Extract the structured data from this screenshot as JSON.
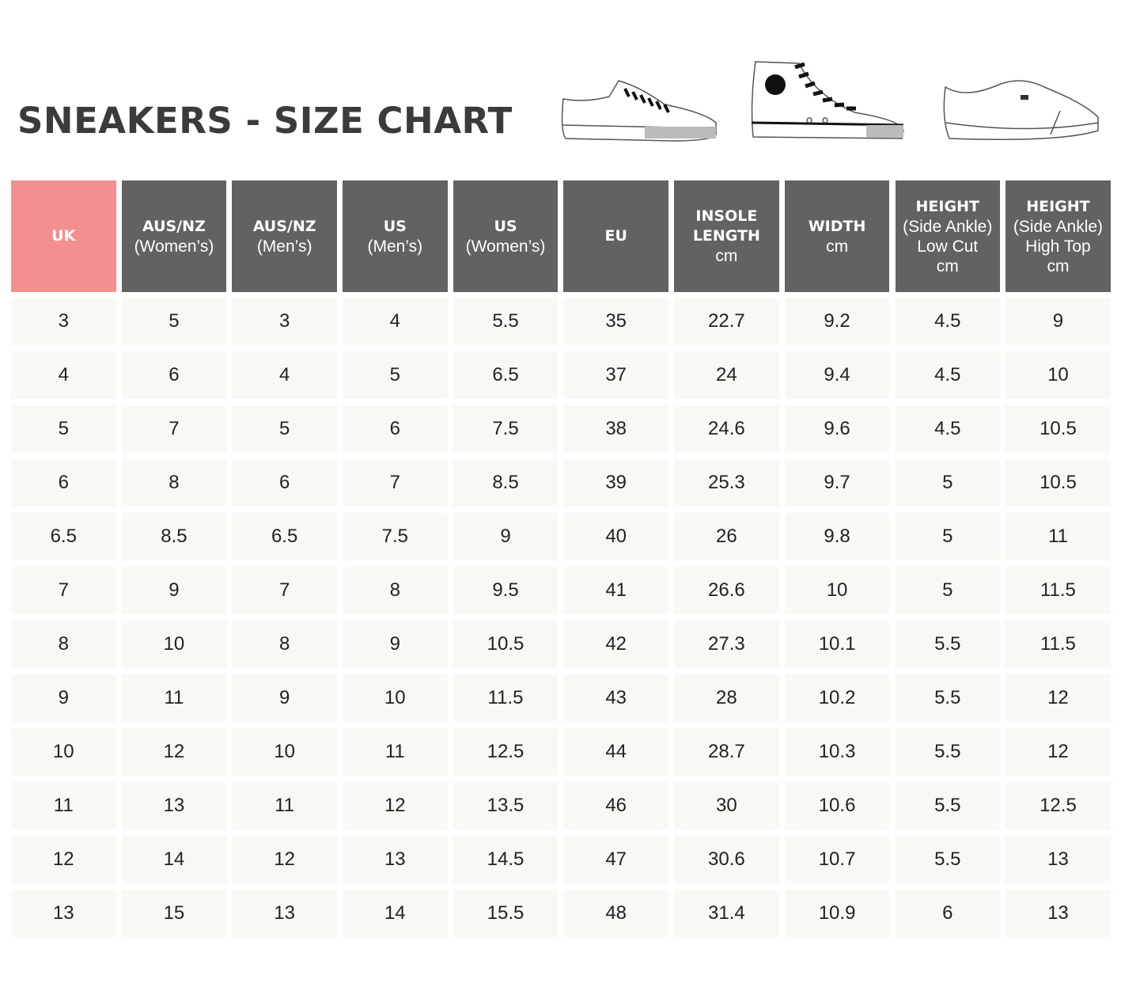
{
  "title": "SNEAKERS - SIZE CHART",
  "images": [
    "low-top-canvas-sneaker",
    "high-top-canvas-sneaker",
    "low-top-leather-sneaker"
  ],
  "colors": {
    "uk_header": "#f48f8f",
    "header": "#636261",
    "cell": "#faf8f5",
    "title": "#3b3b3b"
  },
  "headers": [
    {
      "bold": "UK",
      "sub": []
    },
    {
      "bold": "AUS/NZ",
      "sub": [
        "(Women’s)"
      ]
    },
    {
      "bold": "AUS/NZ",
      "sub": [
        "(Men’s)"
      ]
    },
    {
      "bold": "US",
      "sub": [
        "(Men’s)"
      ]
    },
    {
      "bold": "US",
      "sub": [
        "(Women’s)"
      ]
    },
    {
      "bold": "EU",
      "sub": []
    },
    {
      "bold": "INSOLE LENGTH",
      "sub": [
        "cm"
      ]
    },
    {
      "bold": "WIDTH",
      "sub": [
        "cm"
      ]
    },
    {
      "bold": "HEIGHT",
      "sub": [
        "(Side Ankle)",
        "Low Cut",
        "cm"
      ]
    },
    {
      "bold": "HEIGHT",
      "sub": [
        "(Side Ankle)",
        "High Top",
        "cm"
      ]
    }
  ],
  "rows": [
    [
      "3",
      "5",
      "3",
      "4",
      "5.5",
      "35",
      "22.7",
      "9.2",
      "4.5",
      "9"
    ],
    [
      "4",
      "6",
      "4",
      "5",
      "6.5",
      "37",
      "24",
      "9.4",
      "4.5",
      "10"
    ],
    [
      "5",
      "7",
      "5",
      "6",
      "7.5",
      "38",
      "24.6",
      "9.6",
      "4.5",
      "10.5"
    ],
    [
      "6",
      "8",
      "6",
      "7",
      "8.5",
      "39",
      "25.3",
      "9.7",
      "5",
      "10.5"
    ],
    [
      "6.5",
      "8.5",
      "6.5",
      "7.5",
      "9",
      "40",
      "26",
      "9.8",
      "5",
      "11"
    ],
    [
      "7",
      "9",
      "7",
      "8",
      "9.5",
      "41",
      "26.6",
      "10",
      "5",
      "11.5"
    ],
    [
      "8",
      "10",
      "8",
      "9",
      "10.5",
      "42",
      "27.3",
      "10.1",
      "5.5",
      "11.5"
    ],
    [
      "9",
      "11",
      "9",
      "10",
      "11.5",
      "43",
      "28",
      "10.2",
      "5.5",
      "12"
    ],
    [
      "10",
      "12",
      "10",
      "11",
      "12.5",
      "44",
      "28.7",
      "10.3",
      "5.5",
      "12"
    ],
    [
      "11",
      "13",
      "11",
      "12",
      "13.5",
      "46",
      "30",
      "10.6",
      "5.5",
      "12.5"
    ],
    [
      "12",
      "14",
      "12",
      "13",
      "14.5",
      "47",
      "30.6",
      "10.7",
      "5.5",
      "13"
    ],
    [
      "13",
      "15",
      "13",
      "14",
      "15.5",
      "48",
      "31.4",
      "10.9",
      "6",
      "13"
    ]
  ]
}
